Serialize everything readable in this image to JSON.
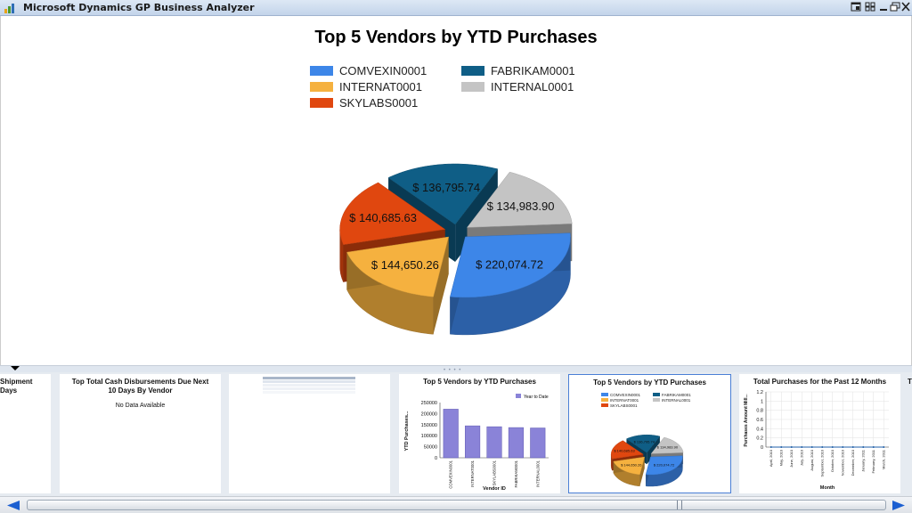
{
  "window": {
    "title": "Microsoft Dynamics GP Business Analyzer",
    "buttons": [
      "restore-icon",
      "grid-icon",
      "minimize-icon",
      "maximize-icon",
      "close-icon"
    ]
  },
  "main_chart": {
    "title": "Top 5 Vendors by YTD Purchases",
    "chart_data": {
      "type": "pie",
      "title": "Top 5 Vendors by YTD Purchases",
      "legend_position": "top",
      "slices": [
        {
          "name": "COMVEXIN0001",
          "value": 220074.72,
          "label": "$ 220,074.72",
          "color": "#3d86e8"
        },
        {
          "name": "INTERNAT0001",
          "value": 144650.26,
          "label": "$ 144,650.26",
          "color": "#f5b13f"
        },
        {
          "name": "SKYLABS0001",
          "value": 140685.63,
          "label": "$ 140,685.63",
          "color": "#e0470f"
        },
        {
          "name": "FABRIKAM0001",
          "value": 136795.74,
          "label": "$ 136,795.74",
          "color": "#0f5e86"
        },
        {
          "name": "INTERNAL0001",
          "value": 134983.9,
          "label": "$ 134,983.90",
          "color": "#c4c4c4"
        }
      ],
      "legend_order": [
        "COMVEXIN0001",
        "FABRIKAM0001",
        "INTERNAT0001",
        "INTERNAL0001",
        "SKYLABS0001"
      ]
    }
  },
  "thumbnails": [
    {
      "title": "Shipment Days",
      "partial": true
    },
    {
      "title": "Top Total Cash Disbursements Due Next 10 Days By Vendor",
      "subtitle": "No Data Available"
    },
    {
      "title": "",
      "kind": "table-preview"
    },
    {
      "title": "Top 5 Vendors by YTD Purchases",
      "kind": "bar",
      "legend": "Year to Date",
      "ylabel": "YTD Purchases...",
      "xlabel": "Vendor ID",
      "y_ticks": [
        "250000",
        "200000",
        "150000",
        "100000",
        "50000",
        "0"
      ],
      "categories": [
        "COMVEXIN0001",
        "INTERNAT0001",
        "SKYLABS0001",
        "FABRIKAM0001",
        "INTERNAL0001"
      ],
      "values": [
        220074.72,
        144650.26,
        140685.63,
        136795.74,
        134983.9
      ]
    },
    {
      "title": "Top 5 Vendors by YTD Purchases",
      "kind": "pie",
      "selected": true
    },
    {
      "title": "Total Purchases for the Past 12 Months",
      "kind": "line",
      "ylabel": "Purchases Amount Mill...",
      "xlabel": "Month",
      "y_ticks": [
        "1.2",
        "1",
        "0.8",
        "0.6",
        "0.4",
        "0.2",
        "0"
      ],
      "months": [
        "April, 2010",
        "May, 2010",
        "June, 2010",
        "July, 2010",
        "August, 2010",
        "September, 2010",
        "October, 2010",
        "November, 2010",
        "December, 2010",
        "January, 2011",
        "February, 2011",
        "March, 2011"
      ],
      "values": [
        0,
        0,
        0,
        0,
        0,
        0,
        0,
        0,
        0,
        0,
        0,
        0
      ]
    },
    {
      "title": "T",
      "partial": true
    }
  ]
}
